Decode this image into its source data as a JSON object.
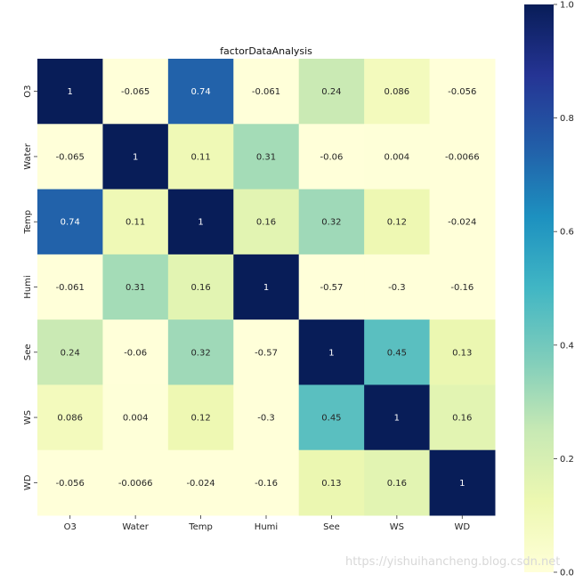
{
  "chart_data": {
    "type": "heatmap",
    "title": "factorDataAnalysis",
    "xlabel": "",
    "ylabel": "",
    "x_labels": [
      "O3",
      "Water",
      "Temp",
      "Humi",
      "See",
      "WS",
      "WD"
    ],
    "y_labels": [
      "O3",
      "Water",
      "Temp",
      "Humi",
      "See",
      "WS",
      "WD"
    ],
    "values": [
      [
        1,
        -0.065,
        0.74,
        -0.061,
        0.24,
        0.086,
        -0.056
      ],
      [
        -0.065,
        1,
        0.11,
        0.31,
        -0.06,
        0.004,
        -0.0066
      ],
      [
        0.74,
        0.11,
        1,
        0.16,
        0.32,
        0.12,
        -0.024
      ],
      [
        -0.061,
        0.31,
        0.16,
        1,
        -0.57,
        -0.3,
        -0.16
      ],
      [
        0.24,
        -0.06,
        0.32,
        -0.57,
        1,
        0.45,
        0.13
      ],
      [
        0.086,
        0.004,
        0.12,
        -0.3,
        0.45,
        1,
        0.16
      ],
      [
        -0.056,
        -0.0066,
        -0.024,
        -0.16,
        0.13,
        0.16,
        1
      ]
    ],
    "colorbar": {
      "range": [
        0.0,
        1.0
      ],
      "ticks": [
        "0.0",
        "0.2",
        "0.4",
        "0.6",
        "0.8",
        "1.0"
      ],
      "colormap": "YlGnBu"
    },
    "annotations": "cell values printed in each cell"
  },
  "watermark": "https://yishuihancheng.blog.csdn.net"
}
